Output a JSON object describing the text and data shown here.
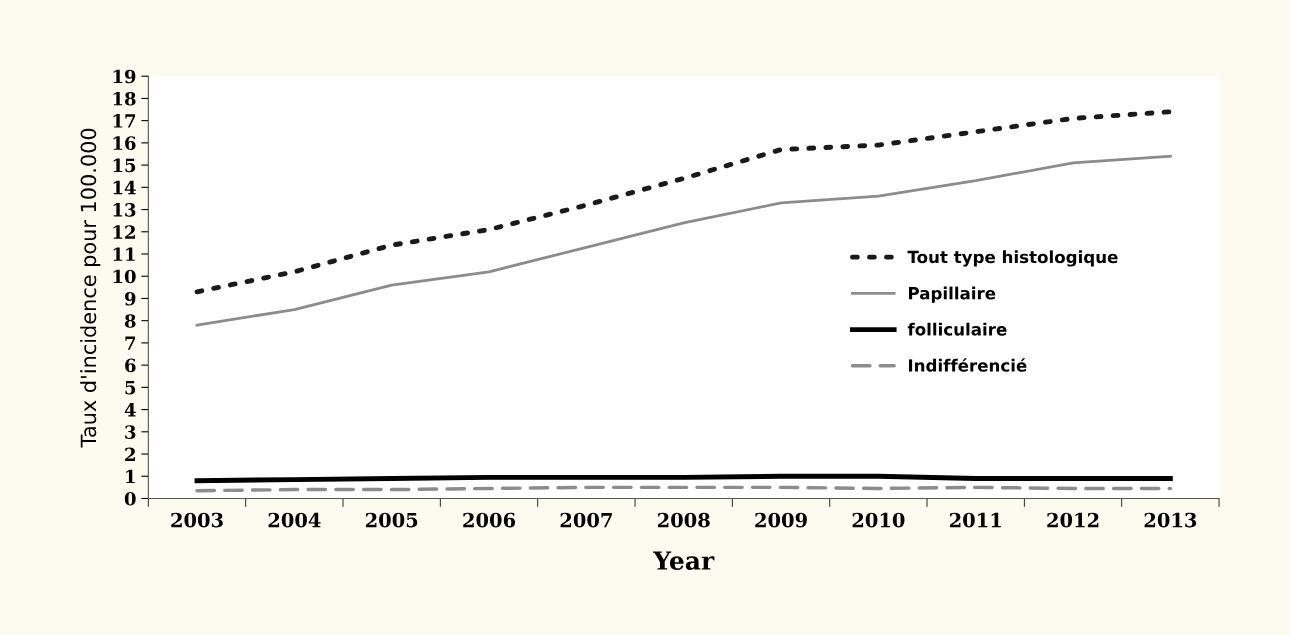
{
  "chart_data": {
    "type": "line",
    "xlabel": "Year",
    "ylabel": "Taux d'incidence pour 100.000",
    "categories": [
      "2003",
      "2004",
      "2005",
      "2006",
      "2007",
      "2008",
      "2009",
      "2010",
      "2011",
      "2012",
      "2013"
    ],
    "series": [
      {
        "name": "Tout type histologique",
        "color": "#1a1a1a",
        "line_style": "dotted",
        "values": [
          9.3,
          10.2,
          11.4,
          12.1,
          13.2,
          14.4,
          15.7,
          15.9,
          16.5,
          17.1,
          17.4
        ]
      },
      {
        "name": "Papillaire",
        "color": "#8c8c8c",
        "line_style": "solid",
        "values": [
          7.8,
          8.5,
          9.6,
          10.2,
          11.3,
          12.4,
          13.3,
          13.6,
          14.3,
          15.1,
          15.4
        ]
      },
      {
        "name": "folliculaire",
        "color": "#000000",
        "line_style": "solid",
        "values": [
          0.8,
          0.85,
          0.9,
          0.95,
          0.95,
          0.95,
          1.0,
          1.0,
          0.9,
          0.9,
          0.9
        ]
      },
      {
        "name": "Indifférencié",
        "color": "#8c8c8c",
        "line_style": "dashed",
        "values": [
          0.35,
          0.4,
          0.4,
          0.45,
          0.5,
          0.5,
          0.5,
          0.45,
          0.5,
          0.45,
          0.45
        ]
      }
    ],
    "ylim": [
      0,
      19
    ],
    "yticks": [
      0,
      1,
      2,
      3,
      4,
      5,
      6,
      7,
      8,
      9,
      10,
      11,
      12,
      13,
      14,
      15,
      16,
      17,
      18,
      19
    ],
    "grid": false,
    "legend": "right",
    "marker": "none"
  }
}
